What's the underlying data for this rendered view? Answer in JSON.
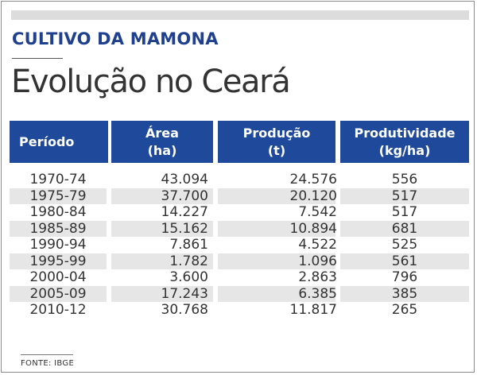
{
  "kicker": "CULTIVO DA MAMONA",
  "title": "Evolução no Ceará",
  "source": "FONTE: IBGE",
  "colors": {
    "header": "#1f4a9b",
    "kicker": "#1f3f8f",
    "row_shade": "#e6e6e6"
  },
  "chart_data": {
    "type": "table",
    "columns": [
      {
        "line1": "Período",
        "line2": ""
      },
      {
        "line1": "Área",
        "line2": "(ha)"
      },
      {
        "line1": "Produção",
        "line2": "(t)"
      },
      {
        "line1": "Produtividade",
        "line2": "(kg/ha)"
      }
    ],
    "rows": [
      [
        "1970-74",
        "43.094",
        "24.576",
        "556"
      ],
      [
        "1975-79",
        "37.700",
        "20.120",
        "517"
      ],
      [
        "1980-84",
        "14.227",
        "7.542",
        "517"
      ],
      [
        "1985-89",
        "15.162",
        "10.894",
        "681"
      ],
      [
        "1990-94",
        "7.861",
        "4.522",
        "525"
      ],
      [
        "1995-99",
        "1.782",
        "1.096",
        "561"
      ],
      [
        "2000-04",
        "3.600",
        "2.863",
        "796"
      ],
      [
        "2005-09",
        "17.243",
        "6.385",
        "385"
      ],
      [
        "2010-12",
        "30.768",
        "11.817",
        "265"
      ]
    ]
  }
}
